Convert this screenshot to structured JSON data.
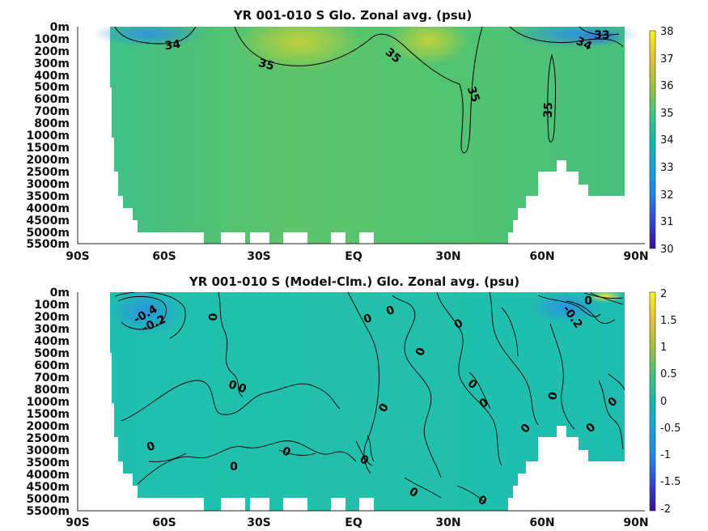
{
  "chart_data": [
    {
      "type": "heatmap",
      "title": "YR 001-010 S Glo. Zonal avg. (psu)",
      "x_ticks": [
        "90S",
        "60S",
        "30S",
        "EQ",
        "30N",
        "60N",
        "90N"
      ],
      "y_ticks": [
        "0m",
        "100m",
        "200m",
        "300m",
        "400m",
        "500m",
        "600m",
        "700m",
        "800m",
        "1000m",
        "1500m",
        "2000m",
        "2500m",
        "3000m",
        "3500m",
        "4000m",
        "4500m",
        "5000m",
        "5500m"
      ],
      "xlim": [
        -90,
        90
      ],
      "colorbar": {
        "min": 30,
        "max": 38,
        "ticks": [
          "30",
          "31",
          "32",
          "33",
          "34",
          "35",
          "36",
          "37",
          "38"
        ]
      },
      "contour_labels": [
        {
          "text": "34",
          "lat": -55,
          "depth": "100m"
        },
        {
          "text": "35",
          "lat": -28,
          "depth": "300m"
        },
        {
          "text": "35",
          "lat": 12,
          "depth": "200m"
        },
        {
          "text": "35",
          "lat": 33,
          "depth": "500m"
        },
        {
          "text": "35",
          "lat": 62,
          "depth": "700m"
        },
        {
          "text": "34",
          "lat": 73,
          "depth": "100m"
        },
        {
          "text": "33",
          "lat": 80,
          "depth": "0m"
        }
      ]
    },
    {
      "type": "heatmap",
      "title": "YR 001-010 S (Model-Clm.) Glo. Zonal avg. (psu)",
      "x_ticks": [
        "90S",
        "60S",
        "30S",
        "EQ",
        "30N",
        "60N",
        "90N"
      ],
      "y_ticks": [
        "0m",
        "100m",
        "200m",
        "300m",
        "400m",
        "500m",
        "600m",
        "700m",
        "800m",
        "1000m",
        "1500m",
        "2000m",
        "2500m",
        "3000m",
        "3500m",
        "4000m",
        "4500m",
        "5000m",
        "5500m"
      ],
      "xlim": [
        -90,
        90
      ],
      "colorbar": {
        "min": -2,
        "max": 2,
        "ticks": [
          "2",
          "1.5",
          "1",
          "0.5",
          "0",
          "-0.5",
          "-1",
          "-1.5",
          "-2"
        ]
      },
      "contour_labels": [
        {
          "text": "-0.4",
          "lat": -67,
          "depth": "100m"
        },
        {
          "text": "-0.2",
          "lat": -65,
          "depth": "200m"
        },
        {
          "text": "0",
          "lat": -45,
          "depth": "200m"
        },
        {
          "text": "0",
          "lat": 12,
          "depth": "100m"
        },
        {
          "text": "0",
          "lat": 5,
          "depth": "200m"
        },
        {
          "text": "0",
          "lat": 35,
          "depth": "200m"
        },
        {
          "text": "0",
          "lat": 22,
          "depth": "400m"
        },
        {
          "text": "-0.2",
          "lat": 70,
          "depth": "100m"
        },
        {
          "text": "0",
          "lat": 76,
          "depth": "0m"
        },
        {
          "text": "0",
          "lat": -36,
          "depth": "700m"
        },
        {
          "text": "0",
          "lat": -33,
          "depth": "700m"
        },
        {
          "text": "0",
          "lat": 33,
          "depth": "700m"
        },
        {
          "text": "0",
          "lat": 40,
          "depth": "1000m"
        },
        {
          "text": "0",
          "lat": 13,
          "depth": "1500m"
        },
        {
          "text": "0",
          "lat": 64,
          "depth": "800m"
        },
        {
          "text": "0",
          "lat": 86,
          "depth": "1000m"
        },
        {
          "text": "0",
          "lat": 80,
          "depth": "2000m"
        },
        {
          "text": "0",
          "lat": 56,
          "depth": "2000m"
        },
        {
          "text": "0",
          "lat": -62,
          "depth": "2500m"
        },
        {
          "text": "0",
          "lat": -20,
          "depth": "3000m"
        },
        {
          "text": "0",
          "lat": -37,
          "depth": "4000m"
        },
        {
          "text": "0",
          "lat": 5,
          "depth": "4000m"
        },
        {
          "text": "0",
          "lat": 17,
          "depth": "5000m"
        },
        {
          "text": "0",
          "lat": 39,
          "depth": "5500m"
        }
      ]
    }
  ]
}
